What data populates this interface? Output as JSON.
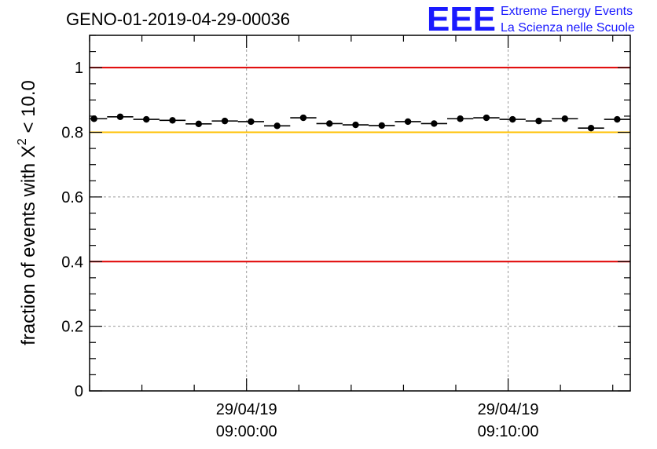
{
  "chart_data": {
    "type": "scatter",
    "title": "GENO-01-2019-04-29-00036",
    "ylabel": {
      "prefix": "fraction of events with ",
      "symbol": "X",
      "sup": "2",
      "suffix": " < 10.0"
    },
    "xlabel": "",
    "x_ticks": [
      {
        "date": "29/04/19",
        "time": "09:00:00",
        "minutes": 0
      },
      {
        "date": "29/04/19",
        "time": "09:10:00",
        "minutes": 10
      }
    ],
    "xlim_minutes": [
      -6,
      14.67
    ],
    "ylim": [
      0,
      1.1
    ],
    "y_ticks": [
      "0",
      "0.2",
      "0.4",
      "0.6",
      "0.8",
      "1"
    ],
    "y_tick_values": [
      0,
      0.2,
      0.4,
      0.6,
      0.8,
      1.0
    ],
    "reference_lines": [
      {
        "y": 1.0,
        "color": "#e00000"
      },
      {
        "y": 0.8,
        "color": "#ffc000"
      },
      {
        "y": 0.4,
        "color": "#e00000"
      }
    ],
    "grid": true,
    "x": [
      -5.83,
      -4.83,
      -3.83,
      -2.83,
      -1.83,
      -0.83,
      0.17,
      1.17,
      2.17,
      3.17,
      4.17,
      5.17,
      6.17,
      7.17,
      8.17,
      9.17,
      10.17,
      11.17,
      12.17,
      13.17,
      14.17
    ],
    "y": [
      0.842,
      0.848,
      0.84,
      0.837,
      0.826,
      0.835,
      0.833,
      0.82,
      0.845,
      0.827,
      0.823,
      0.821,
      0.833,
      0.827,
      0.842,
      0.845,
      0.84,
      0.835,
      0.842,
      0.813,
      0.84
    ],
    "marker_color": "#000000"
  },
  "logo": {
    "mark": "EEE",
    "line1": "Extreme Energy Events",
    "line2": "La Scienza nelle Scuole"
  }
}
